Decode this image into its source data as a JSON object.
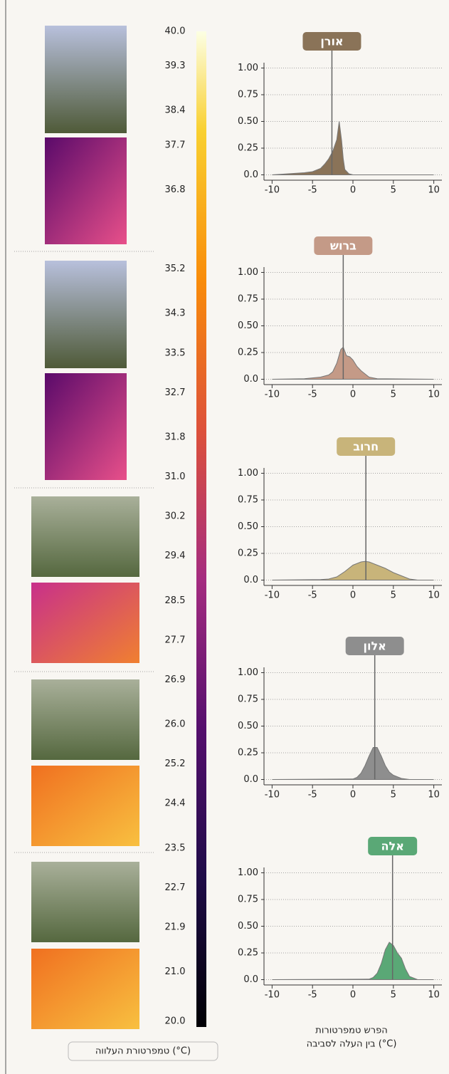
{
  "colorbar": {
    "label": "טמפרטורת העלווה (°C)",
    "lim": [
      20,
      40
    ],
    "ticks": [
      {
        "value": 40,
        "label": "40.0"
      },
      39.3,
      38.4,
      37.7,
      36.8,
      35.2,
      34.3,
      33.5,
      32.7,
      31.8,
      {
        "value": 31,
        "label": "31.0"
      },
      30.2,
      29.4,
      28.5,
      27.7,
      26.9,
      {
        "value": 26,
        "label": "26.0"
      },
      25.2,
      24.4,
      23.5,
      22.7,
      21.9,
      {
        "value": 21,
        "label": "21.0"
      },
      {
        "value": 20,
        "label": "20.0"
      }
    ]
  },
  "density_axis_label": [
    "הפרש טמפרטורות",
    "בין העלה לסביבה (°C)"
  ],
  "chart_data": [
    {
      "type": "area",
      "title": "אורן",
      "color": "#8a7358",
      "marker": -2.6,
      "x": [
        -10,
        -8,
        -6,
        -5,
        -4,
        -3.5,
        -3,
        -2.5,
        -2,
        -1.7,
        -1.4,
        -1.2,
        -1,
        -0.5,
        0,
        10
      ],
      "values": [
        0,
        0.01,
        0.02,
        0.03,
        0.06,
        0.1,
        0.15,
        0.22,
        0.33,
        0.5,
        0.32,
        0.15,
        0.05,
        0.01,
        0,
        0
      ],
      "xlim": [
        -11,
        11
      ],
      "xticks": [
        -10,
        -5,
        0,
        5,
        10
      ],
      "ylim": [
        -0.05,
        1.05
      ],
      "yticks": [
        {
          "value": 0,
          "label": "0.0"
        },
        0.25,
        {
          "value": 0.5,
          "label": "0.50"
        },
        0.75,
        {
          "value": 1,
          "label": "1.00"
        }
      ]
    },
    {
      "type": "area",
      "title": "ברוש",
      "color": "#c49a87",
      "marker": -1.2,
      "x": [
        -10,
        -6,
        -4,
        -3,
        -2.5,
        -2,
        -1.5,
        -1.2,
        -0.8,
        -0.4,
        0,
        0.5,
        1,
        1.5,
        2,
        3,
        10
      ],
      "values": [
        0,
        0.005,
        0.02,
        0.04,
        0.07,
        0.15,
        0.28,
        0.3,
        0.22,
        0.21,
        0.18,
        0.12,
        0.08,
        0.05,
        0.02,
        0.005,
        0
      ],
      "xlim": [
        -11,
        11
      ],
      "xticks": [
        -10,
        -5,
        0,
        5,
        10
      ],
      "ylim": [
        -0.05,
        1.05
      ],
      "yticks": [
        {
          "value": 0,
          "label": "0.0"
        },
        0.25,
        {
          "value": 0.5,
          "label": "0.50"
        },
        0.75,
        {
          "value": 1,
          "label": "1.00"
        }
      ]
    },
    {
      "type": "area",
      "title": "חרוב",
      "color": "#c8b47a",
      "marker": 1.6,
      "x": [
        -10,
        -4,
        -3,
        -2,
        -1,
        0,
        1,
        1.5,
        2,
        3,
        4,
        5,
        6,
        7,
        8,
        10
      ],
      "values": [
        0,
        0.005,
        0.01,
        0.03,
        0.08,
        0.14,
        0.17,
        0.175,
        0.17,
        0.14,
        0.11,
        0.07,
        0.04,
        0.01,
        0,
        0
      ],
      "xlim": [
        -11,
        11
      ],
      "xticks": [
        -10,
        -5,
        0,
        5,
        10
      ],
      "ylim": [
        -0.05,
        1.05
      ],
      "yticks": [
        {
          "value": 0,
          "label": "0.0"
        },
        0.25,
        {
          "value": 0.5,
          "label": "0.50"
        },
        0.75,
        {
          "value": 1,
          "label": "1.00"
        }
      ]
    },
    {
      "type": "area",
      "title": "אלון",
      "color": "#8e8e8e",
      "marker": 2.7,
      "x": [
        -10,
        0,
        0.5,
        1,
        1.5,
        2,
        2.5,
        3,
        3.5,
        4,
        4.5,
        5,
        6,
        7,
        10
      ],
      "values": [
        0,
        0.005,
        0.02,
        0.06,
        0.13,
        0.22,
        0.3,
        0.3,
        0.22,
        0.13,
        0.07,
        0.04,
        0.01,
        0,
        0
      ],
      "xlim": [
        -11,
        11
      ],
      "xticks": [
        -10,
        -5,
        0,
        5,
        10
      ],
      "ylim": [
        -0.05,
        1.05
      ],
      "yticks": [
        {
          "value": 0,
          "label": "0.0"
        },
        0.25,
        {
          "value": 0.5,
          "label": "0.50"
        },
        0.75,
        {
          "value": 1,
          "label": "1.00"
        }
      ]
    },
    {
      "type": "area",
      "title": "אלה",
      "color": "#5aa876",
      "marker": 4.9,
      "x": [
        -10,
        2,
        2.5,
        3,
        3.5,
        4,
        4.5,
        5,
        5.5,
        6,
        6.5,
        7,
        8,
        10
      ],
      "values": [
        0,
        0.005,
        0.02,
        0.06,
        0.15,
        0.28,
        0.35,
        0.32,
        0.25,
        0.2,
        0.1,
        0.03,
        0,
        0
      ],
      "xlim": [
        -11,
        11
      ],
      "xticks": [
        -10,
        -5,
        0,
        5,
        10
      ],
      "ylim": [
        -0.05,
        1.05
      ],
      "yticks": [
        {
          "value": 0,
          "label": "0.0"
        },
        0.25,
        {
          "value": 0.5,
          "label": "0.50"
        },
        0.75,
        {
          "value": 1,
          "label": "1.00"
        }
      ]
    }
  ]
}
